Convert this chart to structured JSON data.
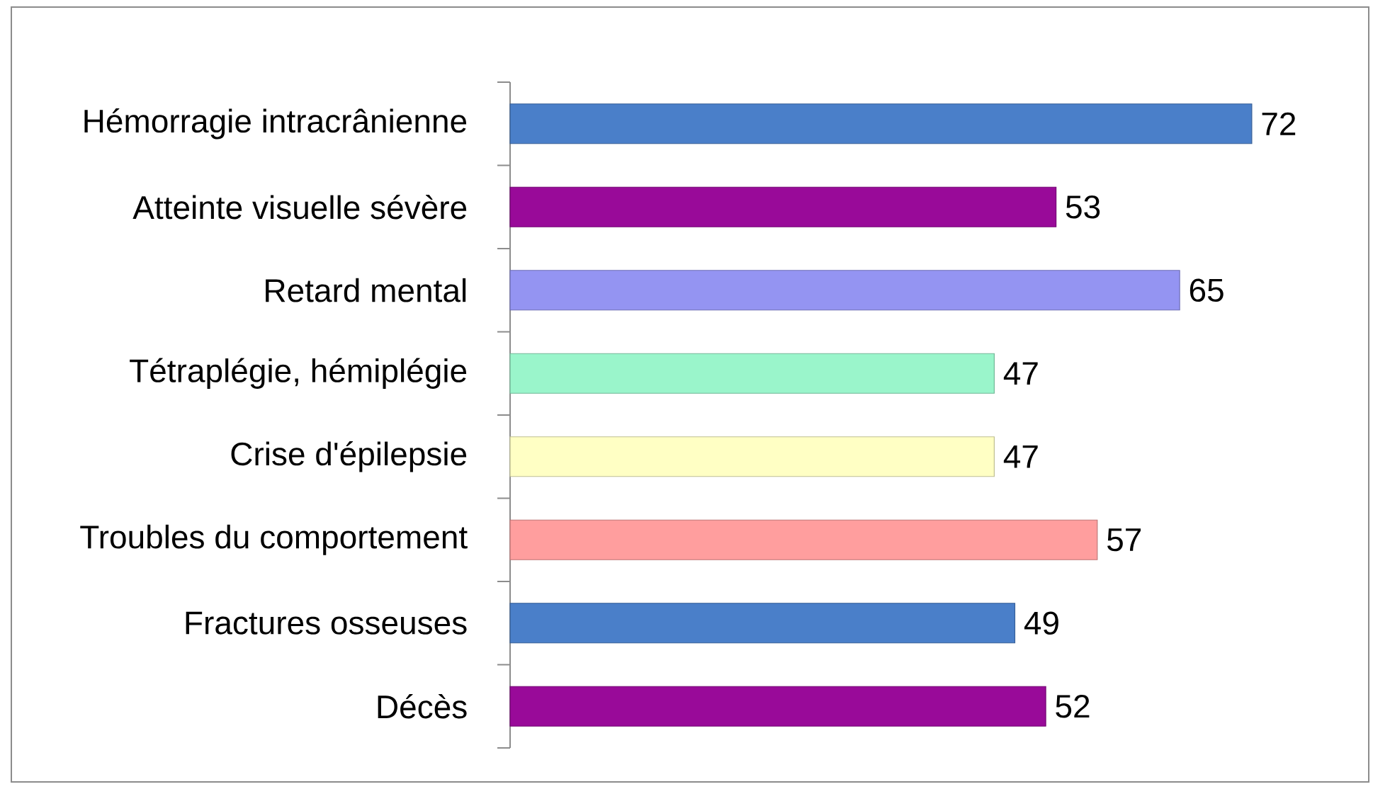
{
  "chart_data": {
    "type": "bar",
    "orientation": "horizontal",
    "categories": [
      "Hémorragie intracrânienne",
      "Atteinte visuelle sévère",
      "Retard mental",
      "Tétraplégie, hémiplégie",
      "Crise d'épilepsie",
      "Troubles du comportement",
      "Fractures osseuses",
      "Décès"
    ],
    "values": [
      72,
      53,
      65,
      47,
      47,
      57,
      49,
      52
    ],
    "colors": [
      "#4a7fc9",
      "#990a99",
      "#9494f2",
      "#9af5cb",
      "#ffffc4",
      "#ff9e9e",
      "#4a7fc9",
      "#990a99"
    ],
    "tick_labels": "y",
    "data_labels": true
  }
}
